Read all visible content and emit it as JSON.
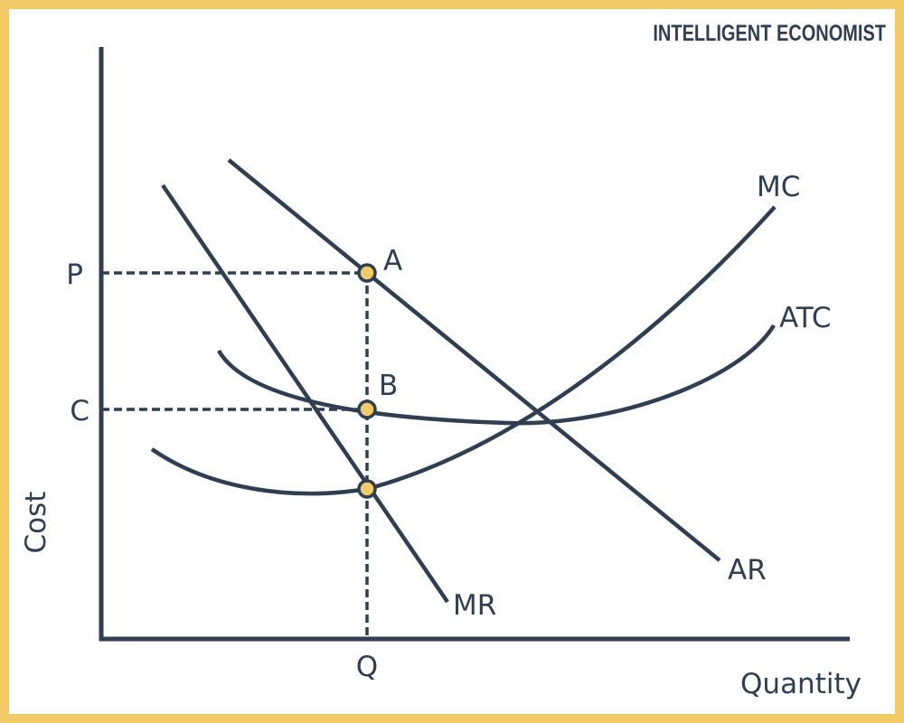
{
  "brand": "INTELLIGENT ECONOMIST",
  "colors": {
    "frame": "#f3cb66",
    "ink": "#2f3e50",
    "point_fill": "#f3cb66"
  },
  "axes": {
    "ylabel": "Cost",
    "xlabel": "Quantity",
    "y_ticks": [
      "P",
      "C"
    ],
    "x_ticks": [
      "Q"
    ]
  },
  "curves": {
    "mc": "MC",
    "atc": "ATC",
    "ar": "AR",
    "mr": "MR"
  },
  "points": {
    "a": "A",
    "b": "B"
  }
}
